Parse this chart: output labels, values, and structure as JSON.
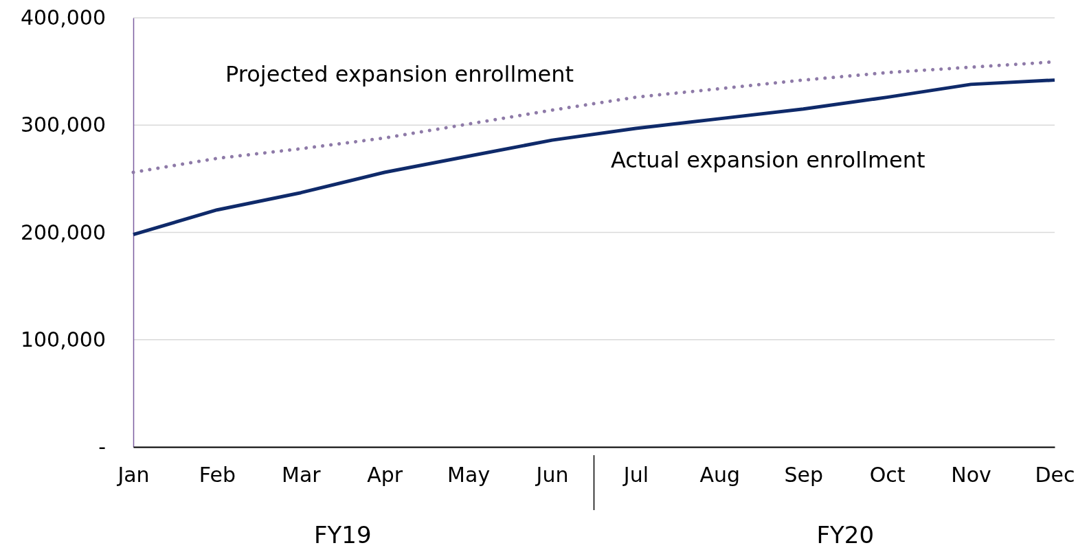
{
  "chart_data": {
    "type": "line",
    "categories": [
      "Jan",
      "Feb",
      "Mar",
      "Apr",
      "May",
      "Jun",
      "Jul",
      "Aug",
      "Sep",
      "Oct",
      "Nov",
      "Dec"
    ],
    "series": [
      {
        "name": "Projected expansion enrollment",
        "color": "#8e7aa8",
        "line_style": "dotted",
        "values": [
          256000,
          269000,
          278000,
          288000,
          301000,
          314000,
          326000,
          334000,
          342000,
          349000,
          354000,
          359000
        ]
      },
      {
        "name": "Actual expansion enrollment",
        "color": "#0f2a6a",
        "line_style": "solid",
        "values": [
          198000,
          221000,
          237000,
          256000,
          271000,
          286000,
          297000,
          306000,
          315000,
          326000,
          338000,
          342000
        ]
      }
    ],
    "ylim": [
      0,
      400000
    ],
    "yticks": [
      {
        "value": 0,
        "label": "-"
      },
      {
        "value": 100000,
        "label": "100,000"
      },
      {
        "value": 200000,
        "label": "200,000"
      },
      {
        "value": 300000,
        "label": "300,000"
      },
      {
        "value": 400000,
        "label": "400,000"
      }
    ],
    "grid": "y",
    "marker": "none",
    "annotations": [
      "FY19",
      "FY20"
    ]
  }
}
